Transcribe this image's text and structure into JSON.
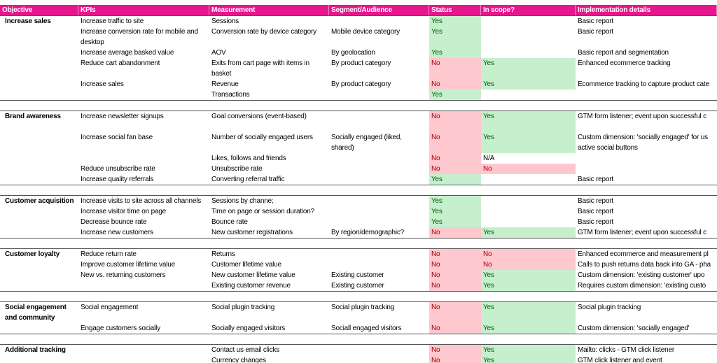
{
  "header": [
    "Objective",
    "KPIs",
    "Measurement",
    "Segment/Audience",
    "Status",
    "In scope?",
    "Implementation details"
  ],
  "groups": [
    {
      "objective": "Increase sales",
      "rows": [
        {
          "kpi": "Increase traffic to site",
          "measurement": "Sessions",
          "status": "Yes",
          "implementation": "Basic report"
        },
        {
          "kpi": [
            "Increase conversion rate for mobile and",
            "desktop"
          ],
          "measurement": "Conversion rate by device category",
          "segment": "Mobile device category",
          "status": "Yes",
          "implementation": "Basic report"
        },
        {
          "kpi": "Increase average basked value",
          "measurement": "AOV",
          "segment": "By geolocation",
          "status": "Yes",
          "implementation": "Basic report and segmentation"
        },
        {
          "kpi": "Reduce cart abandonment",
          "measurement": [
            "Exits from cart page with items in",
            "basket"
          ],
          "segment": "By product category",
          "status": "No",
          "in_scope": "Yes",
          "implementation": "Enhanced ecommerce tracking"
        },
        {
          "kpi": "Increase sales",
          "measurement": "Revenue",
          "segment": "By product category",
          "status": "No",
          "in_scope": "Yes",
          "implementation": "Ecommerce tracking to capture product cate"
        },
        {
          "measurement": "Transactions",
          "status": "Yes"
        }
      ]
    },
    {
      "objective": "Brand awareness",
      "rows": [
        {
          "kpi": "Increase newsletter signups",
          "measurement": "Goal conversions (event-based)",
          "status": "No",
          "in_scope": "Yes",
          "implementation": "GTM form listener; event upon successful c"
        },
        {
          "kpi": "Increase social fan base",
          "measurement": "Number of socially engaged users",
          "segment": [
            "Socially engaged (liked,",
            "shared)"
          ],
          "status": "No",
          "in_scope": "Yes",
          "implementation": [
            "Custom dimension: 'socially engaged' for us",
            "active social buttons"
          ]
        },
        {
          "measurement": "Likes, follows and friends",
          "status": "No",
          "in_scope": "N/A"
        },
        {
          "kpi": "Reduce unsubscribe rate",
          "measurement": "Unsubscribe rate",
          "status": "No",
          "in_scope": "No"
        },
        {
          "kpi": "Increase quality referrals",
          "measurement": "Converting referral traffic",
          "status": "Yes",
          "implementation": "Basic report"
        }
      ]
    },
    {
      "objective": "Customer acquisition",
      "rows": [
        {
          "kpi": "Increase visits to site across all channels",
          "measurement": "Sessions by channe;",
          "status": "Yes",
          "implementation": "Basic report"
        },
        {
          "kpi": "Increase visitor time on page",
          "measurement": "Time on page or session duration?",
          "status": "Yes",
          "implementation": "Basic report"
        },
        {
          "kpi": "Decrease bounce rate",
          "measurement": "Bounce rate",
          "status": "Yes",
          "implementation": "Basic report"
        },
        {
          "kpi": "Increase new customers",
          "measurement": "New customer registrations",
          "segment": "By region/demographic?",
          "status": "No",
          "in_scope": "Yes",
          "implementation": "GTM form listener; event upon successful c"
        }
      ]
    },
    {
      "objective": "Customer loyalty",
      "rows": [
        {
          "kpi": "Reduce return rate",
          "measurement": "Returns",
          "status": "No",
          "in_scope": "No",
          "implementation": "Enhanced ecommerce and measurement pl"
        },
        {
          "kpi": "Improve customer lifetime value",
          "measurement": "Customer lifetime value",
          "status": "No",
          "in_scope": "No",
          "implementation": "Calls to push returns data back into GA - pha"
        },
        {
          "kpi": "New vs. returning customers",
          "measurement": "New customer lifetime value",
          "segment": "Existing customer",
          "status": "No",
          "in_scope": "Yes",
          "implementation": "Custom dimension: 'existing customer' upo"
        },
        {
          "measurement": "Existing customer revenue",
          "segment": "Existing customer",
          "status": "No",
          "in_scope": "Yes",
          "implementation": "Requires custom dimension: 'existing custo"
        }
      ]
    },
    {
      "objective": [
        "Social engagement",
        "and community"
      ],
      "rows": [
        {
          "kpi": "Social engagement",
          "measurement": "Social plugin tracking",
          "segment": "Social plugin tracking",
          "status": "No",
          "in_scope": "Yes",
          "implementation": "Social plugin tracking"
        },
        {
          "kpi": "Engage customers socially",
          "measurement": "Socially engaged visitors",
          "segment": "Sociall engaged visitors",
          "status": "No",
          "in_scope": "Yes",
          "implementation": "Custom dimension: 'socially engaged'"
        }
      ]
    },
    {
      "objective": "Additional tracking",
      "rows": [
        {
          "measurement": "Contact us email clicks",
          "status": "No",
          "in_scope": "Yes",
          "implementation": "Mailto: clicks - GTM click listener"
        },
        {
          "measurement": "Currency changes",
          "status": "No",
          "in_scope": "Yes",
          "implementation": "GTM click listener and event"
        }
      ]
    }
  ]
}
